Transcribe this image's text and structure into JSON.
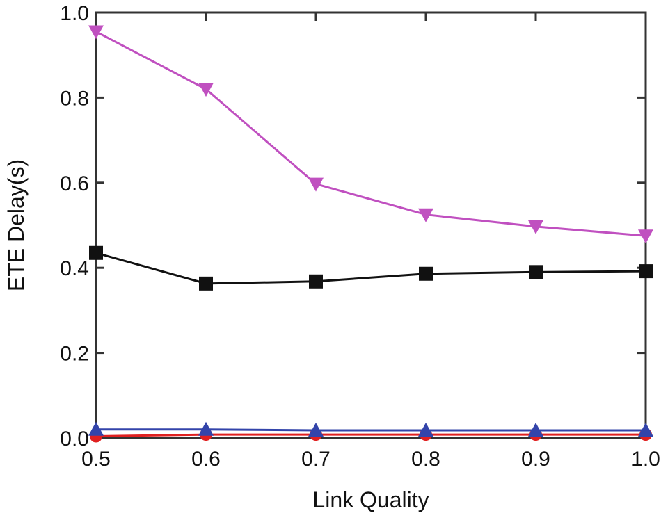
{
  "chart_data": {
    "type": "line",
    "title": "",
    "xlabel": "Link Quality",
    "ylabel": "ETE Delay(s)",
    "xlim": [
      0.5,
      1.0
    ],
    "ylim": [
      0.0,
      1.0
    ],
    "xticks": [
      0.5,
      0.6,
      0.7,
      0.8,
      0.9,
      1.0
    ],
    "yticks": [
      0.0,
      0.2,
      0.4,
      0.6,
      0.8,
      1.0
    ],
    "xtick_labels": [
      "0.5",
      "0.6",
      "0.7",
      "0.8",
      "0.9",
      "1.0"
    ],
    "ytick_labels": [
      "0.0",
      "0.2",
      "0.4",
      "0.6",
      "0.8",
      "1.0"
    ],
    "grid": false,
    "legend": "none",
    "x": [
      0.5,
      0.6,
      0.7,
      0.8,
      0.9,
      1.0
    ],
    "series": [
      {
        "marker": "triangle-down",
        "color": "#c050c0",
        "values": [
          0.955,
          0.82,
          0.597,
          0.525,
          0.497,
          0.475
        ]
      },
      {
        "marker": "square",
        "color": "#111111",
        "values": [
          0.435,
          0.363,
          0.368,
          0.386,
          0.39,
          0.392
        ]
      },
      {
        "marker": "triangle-up",
        "color": "#3344aa",
        "values": [
          0.02,
          0.02,
          0.018,
          0.018,
          0.018,
          0.018
        ]
      },
      {
        "marker": "circle",
        "color": "#e02020",
        "values": [
          0.004,
          0.008,
          0.008,
          0.008,
          0.008,
          0.008
        ]
      }
    ]
  }
}
